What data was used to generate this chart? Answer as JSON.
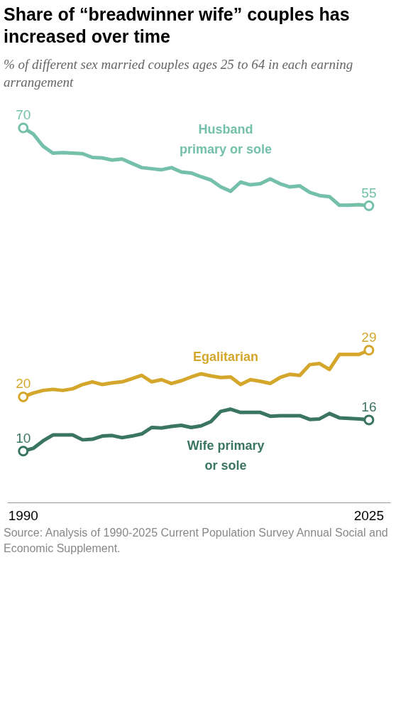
{
  "chart_data": {
    "type": "line",
    "title": "Share of “breadwinner wife” couples has increased over time",
    "subtitle": "% of different sex married couples ages 25 to 64 in each earning arrangement",
    "x": [
      1990,
      1991,
      1992,
      1993,
      1994,
      1995,
      1996,
      1997,
      1998,
      1999,
      2000,
      2001,
      2002,
      2003,
      2004,
      2005,
      2006,
      2007,
      2008,
      2009,
      2010,
      2011,
      2012,
      2013,
      2014,
      2015,
      2016,
      2017,
      2018,
      2019,
      2020,
      2021,
      2022,
      2023,
      2024,
      2025
    ],
    "series": [
      {
        "name": "Husband primary or sole",
        "color": "#74c0aa",
        "values": [
          70,
          68.9,
          66.6,
          65.3,
          65.4,
          65.3,
          65.2,
          64.5,
          64.4,
          64.0,
          64.2,
          63.4,
          62.6,
          62.4,
          62.2,
          62.6,
          61.8,
          61.6,
          60.9,
          60.3,
          59.0,
          58.2,
          59.9,
          59.4,
          59.6,
          60.5,
          59.6,
          59.0,
          59.2,
          58.0,
          57.4,
          57.2,
          55.6,
          55.6,
          55.7,
          55.5
        ],
        "value_labels": [
          "70",
          null,
          null,
          null,
          null,
          null,
          null,
          null,
          null,
          null,
          null,
          null,
          null,
          null,
          null,
          null,
          null,
          null,
          null,
          null,
          null,
          null,
          null,
          null,
          null,
          null,
          null,
          null,
          null,
          null,
          null,
          null,
          null,
          null,
          null,
          "55"
        ]
      },
      {
        "name": "Egalitarian",
        "color": "#d4a72c",
        "values": [
          19.9,
          20.6,
          21.1,
          21.3,
          21.1,
          21.4,
          22.2,
          22.7,
          22.2,
          22.5,
          22.7,
          23.3,
          23.9,
          22.7,
          23.1,
          22.4,
          22.9,
          23.6,
          24.2,
          23.8,
          23.5,
          23.6,
          22.2,
          23.1,
          22.8,
          22.4,
          23.5,
          24.1,
          23.9,
          25.9,
          26.1,
          25.0,
          27.8,
          27.8,
          27.8,
          28.6
        ],
        "value_labels": [
          "20",
          null,
          null,
          null,
          null,
          null,
          null,
          null,
          null,
          null,
          null,
          null,
          null,
          null,
          null,
          null,
          null,
          null,
          null,
          null,
          null,
          null,
          null,
          null,
          null,
          null,
          null,
          null,
          null,
          null,
          null,
          null,
          null,
          null,
          null,
          "29"
        ]
      },
      {
        "name": "Wife primary or sole",
        "color": "#3a7561",
        "values": [
          9.8,
          10.3,
          11.7,
          12.8,
          12.8,
          12.8,
          11.9,
          12.0,
          12.6,
          12.7,
          12.3,
          12.6,
          13.0,
          14.2,
          14.1,
          14.4,
          14.6,
          14.2,
          14.5,
          15.3,
          17.2,
          17.6,
          17.0,
          17.0,
          17.0,
          16.3,
          16.4,
          16.4,
          16.4,
          15.7,
          15.8,
          16.8,
          16.0,
          15.9,
          15.8,
          15.6
        ],
        "value_labels": [
          "10",
          null,
          null,
          null,
          null,
          null,
          null,
          null,
          null,
          null,
          null,
          null,
          null,
          null,
          null,
          null,
          null,
          null,
          null,
          null,
          null,
          null,
          null,
          null,
          null,
          null,
          null,
          null,
          null,
          null,
          null,
          null,
          null,
          null,
          null,
          "16"
        ]
      }
    ],
    "xlim": [
      1988.4,
      2027.2
    ],
    "xticks": [
      1990,
      2025
    ],
    "tick_labels": "x",
    "grid": false,
    "line_style": "solid",
    "annotations": [
      "Source: Analysis of 1990-2025 Current Population Survey Annual Social and Economic Supplement."
    ]
  }
}
